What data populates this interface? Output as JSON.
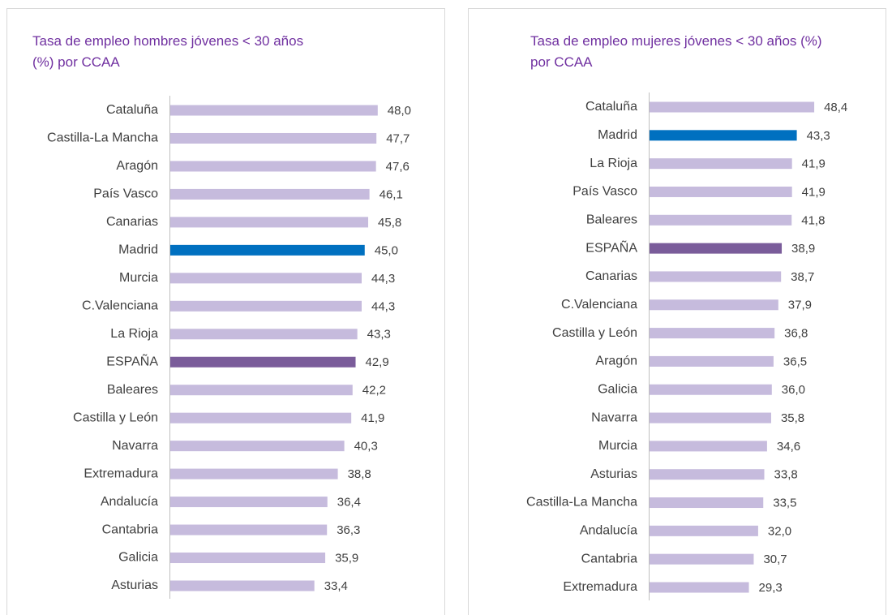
{
  "chart_data": [
    {
      "type": "bar",
      "orientation": "horizontal",
      "title": "Tasa de empleo hombres jóvenes < 30 años (%) por CCAA",
      "categories": [
        "Cataluña",
        "Castilla-La Mancha",
        "Aragón",
        "País Vasco",
        "Canarias",
        "Madrid",
        "Murcia",
        "C.Valenciana",
        "La Rioja",
        "ESPAÑA",
        "Baleares",
        "Castilla y León",
        "Navarra",
        "Extremadura",
        "Andalucía",
        "Cantabria",
        "Galicia",
        "Asturias"
      ],
      "values": [
        48.0,
        47.7,
        47.6,
        46.1,
        45.8,
        45.0,
        44.3,
        44.3,
        43.3,
        42.9,
        42.2,
        41.9,
        40.3,
        38.8,
        36.4,
        36.3,
        35.9,
        33.4
      ],
      "value_labels": [
        "48,0",
        "47,7",
        "47,6",
        "46,1",
        "45,8",
        "45,0",
        "44,3",
        "44,3",
        "43,3",
        "42,9",
        "42,2",
        "41,9",
        "40,3",
        "38,8",
        "36,4",
        "36,3",
        "35,9",
        "33,4"
      ],
      "colors": [
        "#c6bbdd",
        "#c6bbdd",
        "#c6bbdd",
        "#c6bbdd",
        "#c6bbdd",
        "#0070c0",
        "#c6bbdd",
        "#c6bbdd",
        "#c6bbdd",
        "#7a5c9a",
        "#c6bbdd",
        "#c6bbdd",
        "#c6bbdd",
        "#c6bbdd",
        "#c6bbdd",
        "#c6bbdd",
        "#c6bbdd",
        "#c6bbdd"
      ],
      "xlim": [
        0,
        60
      ]
    },
    {
      "type": "bar",
      "orientation": "horizontal",
      "title": "Tasa de empleo mujeres jóvenes < 30 años (%) por CCAA",
      "categories": [
        "Cataluña",
        "Madrid",
        "La Rioja",
        "País Vasco",
        "Baleares",
        "ESPAÑA",
        "Canarias",
        "C.Valenciana",
        "Castilla y León",
        "Aragón",
        "Galicia",
        "Navarra",
        "Murcia",
        "Asturias",
        "Castilla-La Mancha",
        "Andalucía",
        "Cantabria",
        "Extremadura"
      ],
      "values": [
        48.4,
        43.3,
        41.9,
        41.9,
        41.8,
        38.9,
        38.7,
        37.9,
        36.8,
        36.5,
        36.0,
        35.8,
        34.6,
        33.8,
        33.5,
        32.0,
        30.7,
        29.3
      ],
      "value_labels": [
        "48,4",
        "43,3",
        "41,9",
        "41,9",
        "41,8",
        "38,9",
        "38,7",
        "37,9",
        "36,8",
        "36,5",
        "36,0",
        "35,8",
        "34,6",
        "33,8",
        "33,5",
        "32,0",
        "30,7",
        "29,3"
      ],
      "colors": [
        "#c6bbdd",
        "#0070c0",
        "#c6bbdd",
        "#c6bbdd",
        "#c6bbdd",
        "#7a5c9a",
        "#c6bbdd",
        "#c6bbdd",
        "#c6bbdd",
        "#c6bbdd",
        "#c6bbdd",
        "#c6bbdd",
        "#c6bbdd",
        "#c6bbdd",
        "#c6bbdd",
        "#c6bbdd",
        "#c6bbdd",
        "#c6bbdd"
      ],
      "xlim": [
        0,
        60
      ]
    }
  ]
}
